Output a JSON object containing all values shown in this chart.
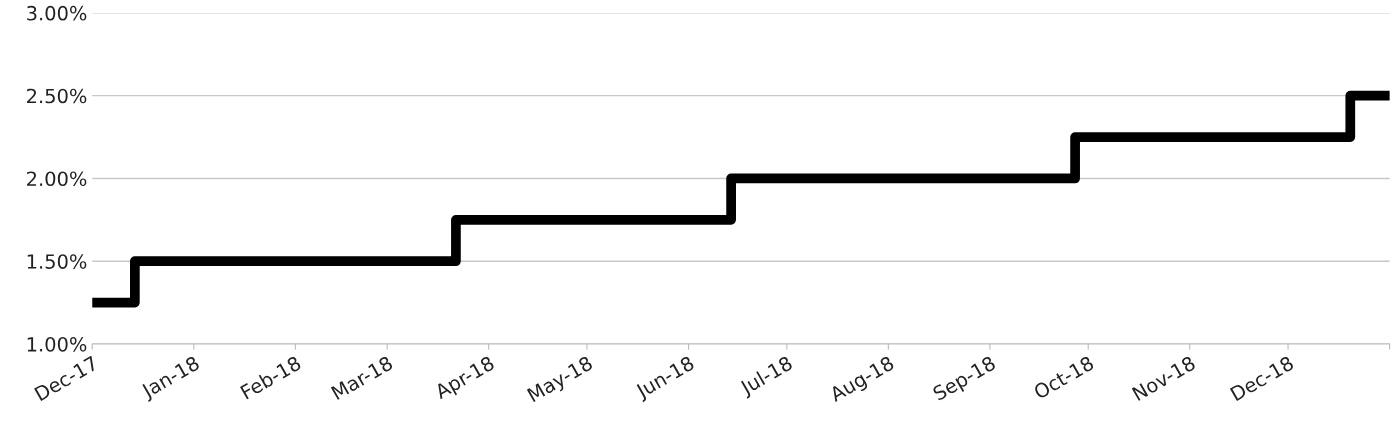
{
  "chart_data": {
    "type": "step",
    "x": [
      "2017-12-01",
      "2017-12-14",
      "2018-03-22",
      "2018-06-14",
      "2018-09-27",
      "2018-12-20",
      "2019-01-01"
    ],
    "series": [
      {
        "color": "#000000",
        "values": [
          1.25,
          1.5,
          1.75,
          2.0,
          2.25,
          2.5,
          2.5
        ]
      }
    ],
    "xlim": [
      "2017-12-01",
      "2019-01-01"
    ],
    "xticks": [
      {
        "value": "2017-12-01",
        "label": "Dec-17"
      },
      {
        "value": "2018-01-01",
        "label": "Jan-18"
      },
      {
        "value": "2018-02-01",
        "label": "Feb-18"
      },
      {
        "value": "2018-03-01",
        "label": "Mar-18"
      },
      {
        "value": "2018-04-01",
        "label": "Apr-18"
      },
      {
        "value": "2018-05-01",
        "label": "May-18"
      },
      {
        "value": "2018-06-01",
        "label": "Jun-18"
      },
      {
        "value": "2018-07-01",
        "label": "Jul-18"
      },
      {
        "value": "2018-08-01",
        "label": "Aug-18"
      },
      {
        "value": "2018-09-01",
        "label": "Sep-18"
      },
      {
        "value": "2018-10-01",
        "label": "Oct-18"
      },
      {
        "value": "2018-11-01",
        "label": "Nov-18"
      },
      {
        "value": "2018-12-01",
        "label": "Dec-18"
      },
      {
        "value": "2019-01-01",
        "label": null
      }
    ],
    "ylim": [
      1.0,
      3.0
    ],
    "yticks": [
      {
        "value": 1.0,
        "label": "1.00%"
      },
      {
        "value": 1.5,
        "label": "1.50%"
      },
      {
        "value": 2.0,
        "label": "2.00%"
      },
      {
        "value": 2.5,
        "label": "2.50%"
      },
      {
        "value": 3.0,
        "label": "3.00%"
      }
    ],
    "grid": "y",
    "legend": false,
    "marker": "none",
    "line_style": "solid"
  }
}
